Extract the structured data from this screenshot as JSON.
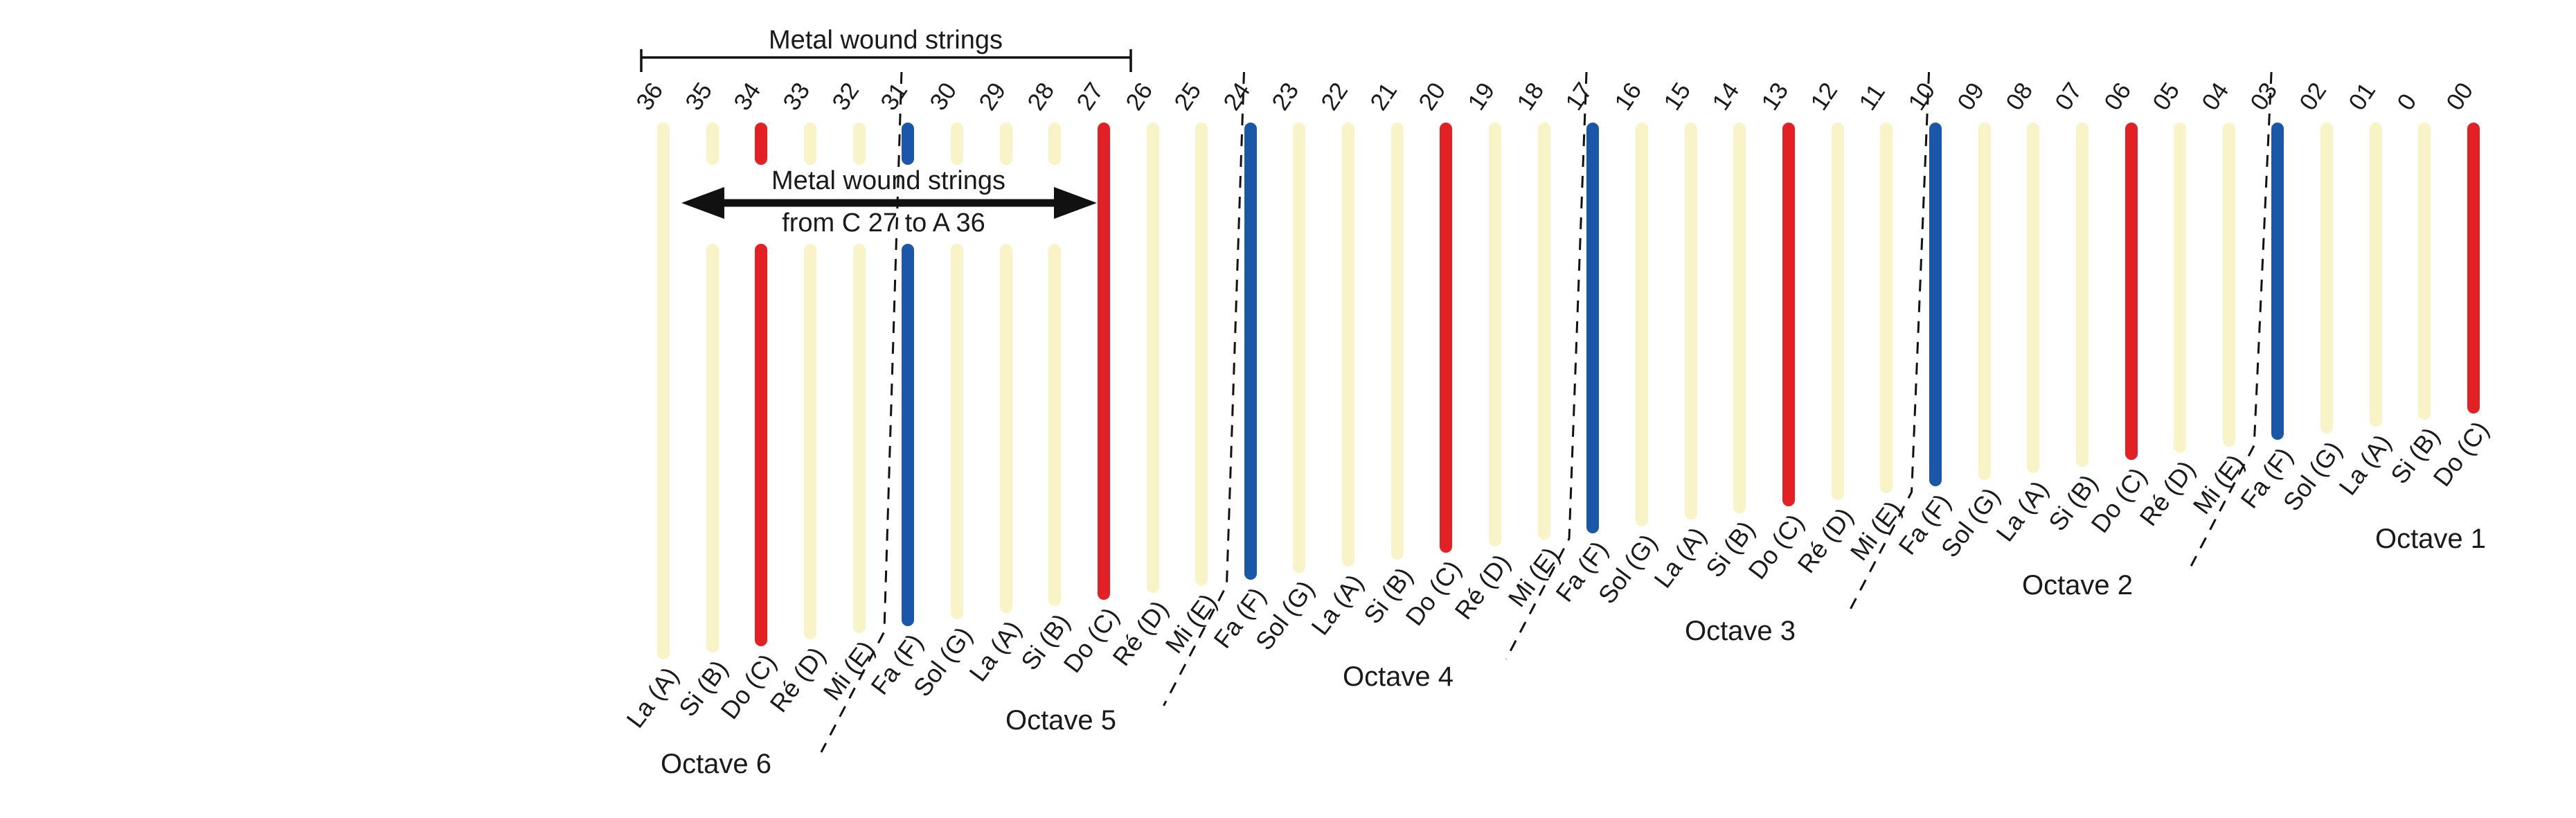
{
  "bracket": {
    "label": "Metal wound strings"
  },
  "arrow": {
    "line1": "Metal wound strings",
    "line2": "from C 27 to A 36"
  },
  "strings": [
    {
      "num": "36",
      "note": "La (A)",
      "color": "cream",
      "split": false
    },
    {
      "num": "35",
      "note": "Si (B)",
      "color": "cream",
      "split": true
    },
    {
      "num": "34",
      "note": "Do (C)",
      "color": "red",
      "split": true
    },
    {
      "num": "33",
      "note": "Ré (D)",
      "color": "cream",
      "split": true
    },
    {
      "num": "32",
      "note": "Mi (E)",
      "color": "cream",
      "split": true
    },
    {
      "num": "31",
      "note": "Fa (F)",
      "color": "blue",
      "split": true
    },
    {
      "num": "30",
      "note": "Sol (G)",
      "color": "cream",
      "split": true
    },
    {
      "num": "29",
      "note": "La (A)",
      "color": "cream",
      "split": true
    },
    {
      "num": "28",
      "note": "Si (B)",
      "color": "cream",
      "split": true
    },
    {
      "num": "27",
      "note": "Do (C)",
      "color": "red",
      "split": false
    },
    {
      "num": "26",
      "note": "Ré (D)",
      "color": "cream",
      "split": false
    },
    {
      "num": "25",
      "note": "Mi (E)",
      "color": "cream",
      "split": false
    },
    {
      "num": "24",
      "note": "Fa (F)",
      "color": "blue",
      "split": false
    },
    {
      "num": "23",
      "note": "Sol (G)",
      "color": "cream",
      "split": false
    },
    {
      "num": "22",
      "note": "La (A)",
      "color": "cream",
      "split": false
    },
    {
      "num": "21",
      "note": "Si (B)",
      "color": "cream",
      "split": false
    },
    {
      "num": "20",
      "note": "Do (C)",
      "color": "red",
      "split": false
    },
    {
      "num": "19",
      "note": "Ré (D)",
      "color": "cream",
      "split": false
    },
    {
      "num": "18",
      "note": "Mi (E)",
      "color": "cream",
      "split": false
    },
    {
      "num": "17",
      "note": "Fa (F)",
      "color": "blue",
      "split": false
    },
    {
      "num": "16",
      "note": "Sol (G)",
      "color": "cream",
      "split": false
    },
    {
      "num": "15",
      "note": "La (A)",
      "color": "cream",
      "split": false
    },
    {
      "num": "14",
      "note": "Si (B)",
      "color": "cream",
      "split": false
    },
    {
      "num": "13",
      "note": "Do (C)",
      "color": "red",
      "split": false
    },
    {
      "num": "12",
      "note": "Ré (D)",
      "color": "cream",
      "split": false
    },
    {
      "num": "11",
      "note": "Mi (E)",
      "color": "cream",
      "split": false
    },
    {
      "num": "10",
      "note": "Fa (F)",
      "color": "blue",
      "split": false
    },
    {
      "num": "09",
      "note": "Sol (G)",
      "color": "cream",
      "split": false
    },
    {
      "num": "08",
      "note": "La (A)",
      "color": "cream",
      "split": false
    },
    {
      "num": "07",
      "note": "Si (B)",
      "color": "cream",
      "split": false
    },
    {
      "num": "06",
      "note": "Do (C)",
      "color": "red",
      "split": false
    },
    {
      "num": "05",
      "note": "Ré (D)",
      "color": "cream",
      "split": false
    },
    {
      "num": "04",
      "note": "Mi (E)",
      "color": "cream",
      "split": false
    },
    {
      "num": "03",
      "note": "Fa (F)",
      "color": "blue",
      "split": false
    },
    {
      "num": "02",
      "note": "Sol (G)",
      "color": "cream",
      "split": false
    },
    {
      "num": "01",
      "note": "La (A)",
      "color": "cream",
      "split": false
    },
    {
      "num": "0",
      "note": "Si (B)",
      "color": "cream",
      "split": false
    },
    {
      "num": "00",
      "note": "Do (C)",
      "color": "red",
      "split": false
    }
  ],
  "octaves": [
    {
      "label": "Octave 6"
    },
    {
      "label": "Octave 5"
    },
    {
      "label": "Octave 4"
    },
    {
      "label": "Octave 3"
    },
    {
      "label": "Octave 2"
    },
    {
      "label": "Octave 1"
    }
  ],
  "colors": {
    "cream": "#f8f4c8",
    "red": "#e32124",
    "blue": "#1a57a8",
    "line": "#111111",
    "text": "#1a1a1a"
  }
}
